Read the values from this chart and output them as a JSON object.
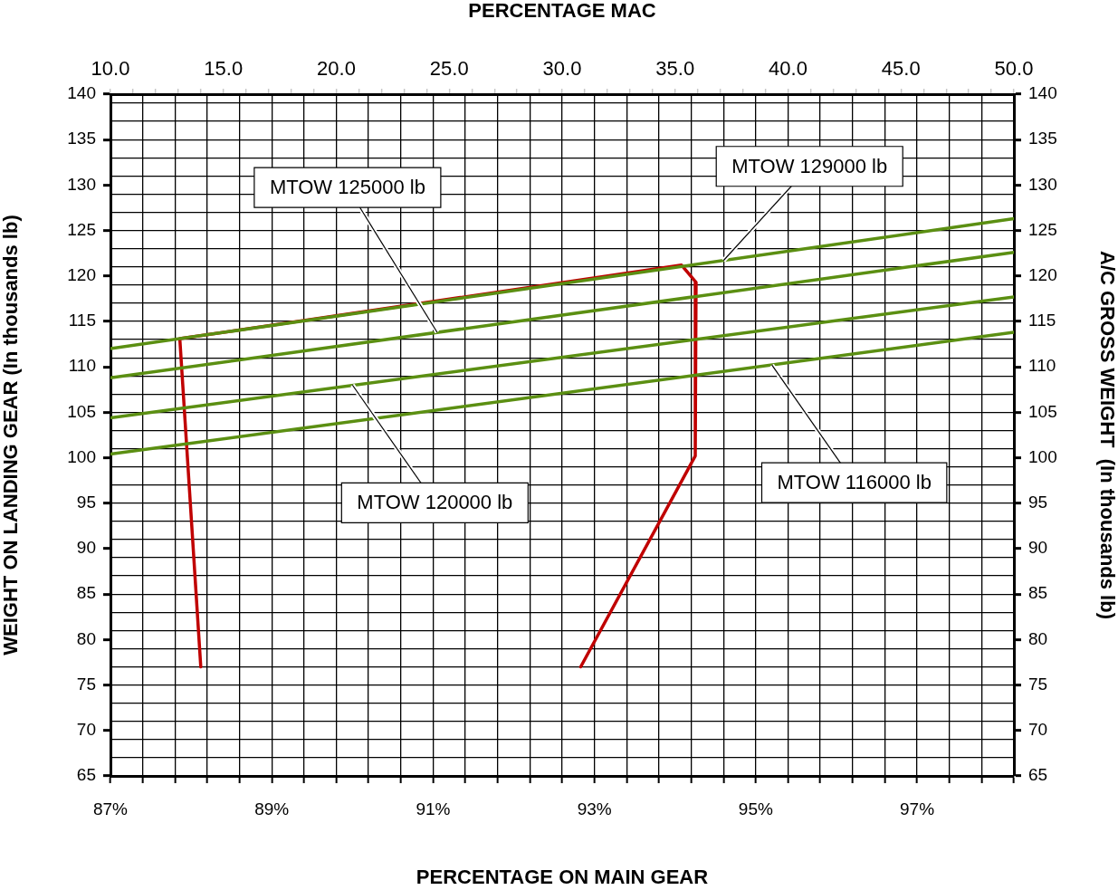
{
  "chart_data": {
    "type": "line",
    "xlabel": "PERCENTAGE ON MAIN GEAR",
    "x2label": "PERCENTAGE MAC",
    "ylabel": "WEIGHT ON LANDING GEAR (In thousands lb)",
    "y2label": "A/C GROSS WEIGHT  (In thousands lb)",
    "xlim": [
      87,
      98.2
    ],
    "xticks": [
      {
        "value": 87,
        "label": "87%"
      },
      {
        "value": 87.4,
        "label": null
      },
      {
        "value": 87.8,
        "label": null
      },
      {
        "value": 88.2,
        "label": null
      },
      {
        "value": 88.6,
        "label": null
      },
      {
        "value": 89,
        "label": "89%"
      },
      {
        "value": 89.4,
        "label": null
      },
      {
        "value": 89.8,
        "label": null
      },
      {
        "value": 90.2,
        "label": null
      },
      {
        "value": 90.6,
        "label": null
      },
      {
        "value": 91,
        "label": "91%"
      },
      {
        "value": 91.4,
        "label": null
      },
      {
        "value": 91.8,
        "label": null
      },
      {
        "value": 92.2,
        "label": null
      },
      {
        "value": 92.6,
        "label": null
      },
      {
        "value": 93,
        "label": "93%"
      },
      {
        "value": 93.4,
        "label": null
      },
      {
        "value": 93.8,
        "label": null
      },
      {
        "value": 94.2,
        "label": null
      },
      {
        "value": 94.6,
        "label": null
      },
      {
        "value": 95,
        "label": "95%"
      },
      {
        "value": 95.4,
        "label": null
      },
      {
        "value": 95.8,
        "label": null
      },
      {
        "value": 96.2,
        "label": null
      },
      {
        "value": 96.6,
        "label": null
      },
      {
        "value": 97,
        "label": "97%"
      },
      {
        "value": 97.4,
        "label": null
      },
      {
        "value": 97.8,
        "label": null
      },
      {
        "value": 98.2,
        "label": null
      }
    ],
    "x2lim": [
      10,
      50
    ],
    "x2ticks": [
      {
        "value": 10,
        "label": "10.0"
      },
      {
        "value": 11,
        "label": null
      },
      {
        "value": 12,
        "label": null
      },
      {
        "value": 13,
        "label": null
      },
      {
        "value": 14,
        "label": null
      },
      {
        "value": 15,
        "label": "15.0"
      },
      {
        "value": 16,
        "label": null
      },
      {
        "value": 17,
        "label": null
      },
      {
        "value": 18,
        "label": null
      },
      {
        "value": 19,
        "label": null
      },
      {
        "value": 20,
        "label": "20.0"
      },
      {
        "value": 21,
        "label": null
      },
      {
        "value": 22,
        "label": null
      },
      {
        "value": 23,
        "label": null
      },
      {
        "value": 24,
        "label": null
      },
      {
        "value": 25,
        "label": "25.0"
      },
      {
        "value": 26,
        "label": null
      },
      {
        "value": 27,
        "label": null
      },
      {
        "value": 28,
        "label": null
      },
      {
        "value": 29,
        "label": null
      },
      {
        "value": 30,
        "label": "30.0"
      },
      {
        "value": 31,
        "label": null
      },
      {
        "value": 32,
        "label": null
      },
      {
        "value": 33,
        "label": null
      },
      {
        "value": 34,
        "label": null
      },
      {
        "value": 35,
        "label": "35.0"
      },
      {
        "value": 36,
        "label": null
      },
      {
        "value": 37,
        "label": null
      },
      {
        "value": 38,
        "label": null
      },
      {
        "value": 39,
        "label": null
      },
      {
        "value": 40,
        "label": "40.0"
      },
      {
        "value": 41,
        "label": null
      },
      {
        "value": 42,
        "label": null
      },
      {
        "value": 43,
        "label": null
      },
      {
        "value": 44,
        "label": null
      },
      {
        "value": 45,
        "label": "45.0"
      },
      {
        "value": 46,
        "label": null
      },
      {
        "value": 47,
        "label": null
      },
      {
        "value": 48,
        "label": null
      },
      {
        "value": 49,
        "label": null
      },
      {
        "value": 50,
        "label": "50.0"
      }
    ],
    "ylim": [
      65,
      140
    ],
    "yticks": [
      65,
      {
        "value": 67,
        "label": null
      },
      {
        "value": 69,
        "label": null
      },
      70,
      {
        "value": 71,
        "label": null
      },
      {
        "value": 73,
        "label": null
      },
      75,
      {
        "value": 77,
        "label": null
      },
      {
        "value": 79,
        "label": null
      },
      80,
      {
        "value": 81,
        "label": null
      },
      {
        "value": 83,
        "label": null
      },
      85,
      {
        "value": 87,
        "label": null
      },
      {
        "value": 89,
        "label": null
      },
      90,
      {
        "value": 91,
        "label": null
      },
      {
        "value": 93,
        "label": null
      },
      95,
      {
        "value": 97,
        "label": null
      },
      {
        "value": 99,
        "label": null
      },
      100,
      {
        "value": 101,
        "label": null
      },
      {
        "value": 103,
        "label": null
      },
      105,
      {
        "value": 107,
        "label": null
      },
      {
        "value": 109,
        "label": null
      },
      110,
      {
        "value": 111,
        "label": null
      },
      {
        "value": 113,
        "label": null
      },
      115,
      {
        "value": 117,
        "label": null
      },
      {
        "value": 119,
        "label": null
      },
      120,
      {
        "value": 121,
        "label": null
      },
      {
        "value": 123,
        "label": null
      },
      125,
      {
        "value": 127,
        "label": null
      },
      {
        "value": 129,
        "label": null
      },
      130,
      {
        "value": 131,
        "label": null
      },
      {
        "value": 133,
        "label": null
      },
      135,
      {
        "value": 137,
        "label": null
      },
      {
        "value": 139,
        "label": null
      },
      140
    ],
    "y2lim": [
      65,
      140
    ],
    "y2ticks": [
      65,
      70,
      75,
      80,
      85,
      90,
      95,
      100,
      105,
      110,
      115,
      120,
      125,
      130,
      135,
      140
    ],
    "grid": true,
    "legend": false,
    "marker": "none",
    "line_style": "solid",
    "series": [
      {
        "color": "#5b8f12",
        "x": [
          87,
          98.2
        ],
        "values": [
          112.0,
          126.3
        ]
      },
      {
        "color": "#5b8f12",
        "x": [
          87,
          98.2
        ],
        "values": [
          108.8,
          122.6
        ]
      },
      {
        "color": "#5b8f12",
        "x": [
          87,
          98.2
        ],
        "values": [
          104.4,
          117.7
        ]
      },
      {
        "color": "#5b8f12",
        "x": [
          87,
          98.2
        ],
        "values": [
          100.4,
          113.8
        ]
      },
      {
        "color": "#c00000",
        "x": [
          88.12,
          87.86,
          94.08,
          94.26,
          94.25,
          92.83
        ],
        "values": [
          77,
          113.1,
          121.2,
          119.3,
          100.2,
          77
        ]
      }
    ],
    "annotations": [
      {
        "text": "MTOW 129000 lb",
        "x": 94.6,
        "y": 121.7
      },
      {
        "text": "MTOW 125000 lb",
        "x": 91.05,
        "y": 113.8
      },
      {
        "text": "MTOW 120000 lb",
        "x": 90.0,
        "y": 108.0
      },
      {
        "text": "MTOW 116000 lb",
        "x": 95.2,
        "y": 110.2
      }
    ]
  }
}
